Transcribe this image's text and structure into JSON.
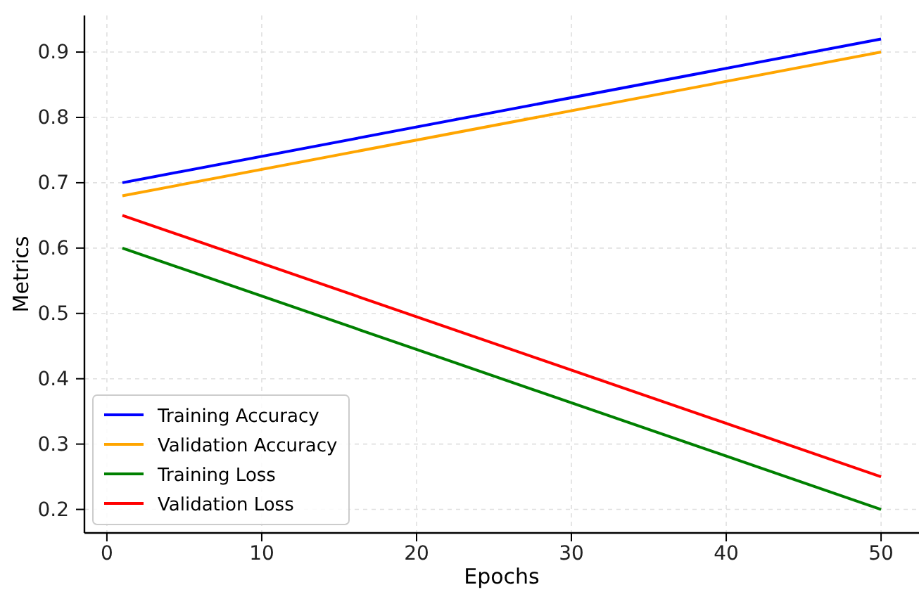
{
  "chart_data": {
    "type": "line",
    "xlabel": "Epochs",
    "ylabel": "Metrics",
    "x": [
      1,
      50
    ],
    "series": [
      {
        "name": "Training Accuracy",
        "color": "#0000ff",
        "values": [
          0.7,
          0.92
        ]
      },
      {
        "name": "Validation Accuracy",
        "color": "#ffa500",
        "values": [
          0.68,
          0.9
        ]
      },
      {
        "name": "Training Loss",
        "color": "#008000",
        "values": [
          0.6,
          0.2
        ]
      },
      {
        "name": "Validation Loss",
        "color": "#ff0000",
        "values": [
          0.65,
          0.25
        ]
      }
    ],
    "xlim": [
      -1.45,
      52.45
    ],
    "xticks": [
      0,
      10,
      20,
      30,
      40,
      50
    ],
    "ylim": [
      0.164,
      0.956
    ],
    "yticks": [
      {
        "value": 0.2,
        "label": "0.2"
      },
      {
        "value": 0.3,
        "label": "0.3"
      },
      {
        "value": 0.4,
        "label": "0.4"
      },
      {
        "value": 0.5,
        "label": "0.5"
      },
      {
        "value": 0.6,
        "label": "0.6"
      },
      {
        "value": 0.7,
        "label": "0.7"
      },
      {
        "value": 0.8,
        "label": "0.8"
      },
      {
        "value": 0.9,
        "label": "0.9"
      }
    ],
    "grid": true,
    "legend": "bottom left",
    "marker": "none",
    "line_style": "solid"
  }
}
